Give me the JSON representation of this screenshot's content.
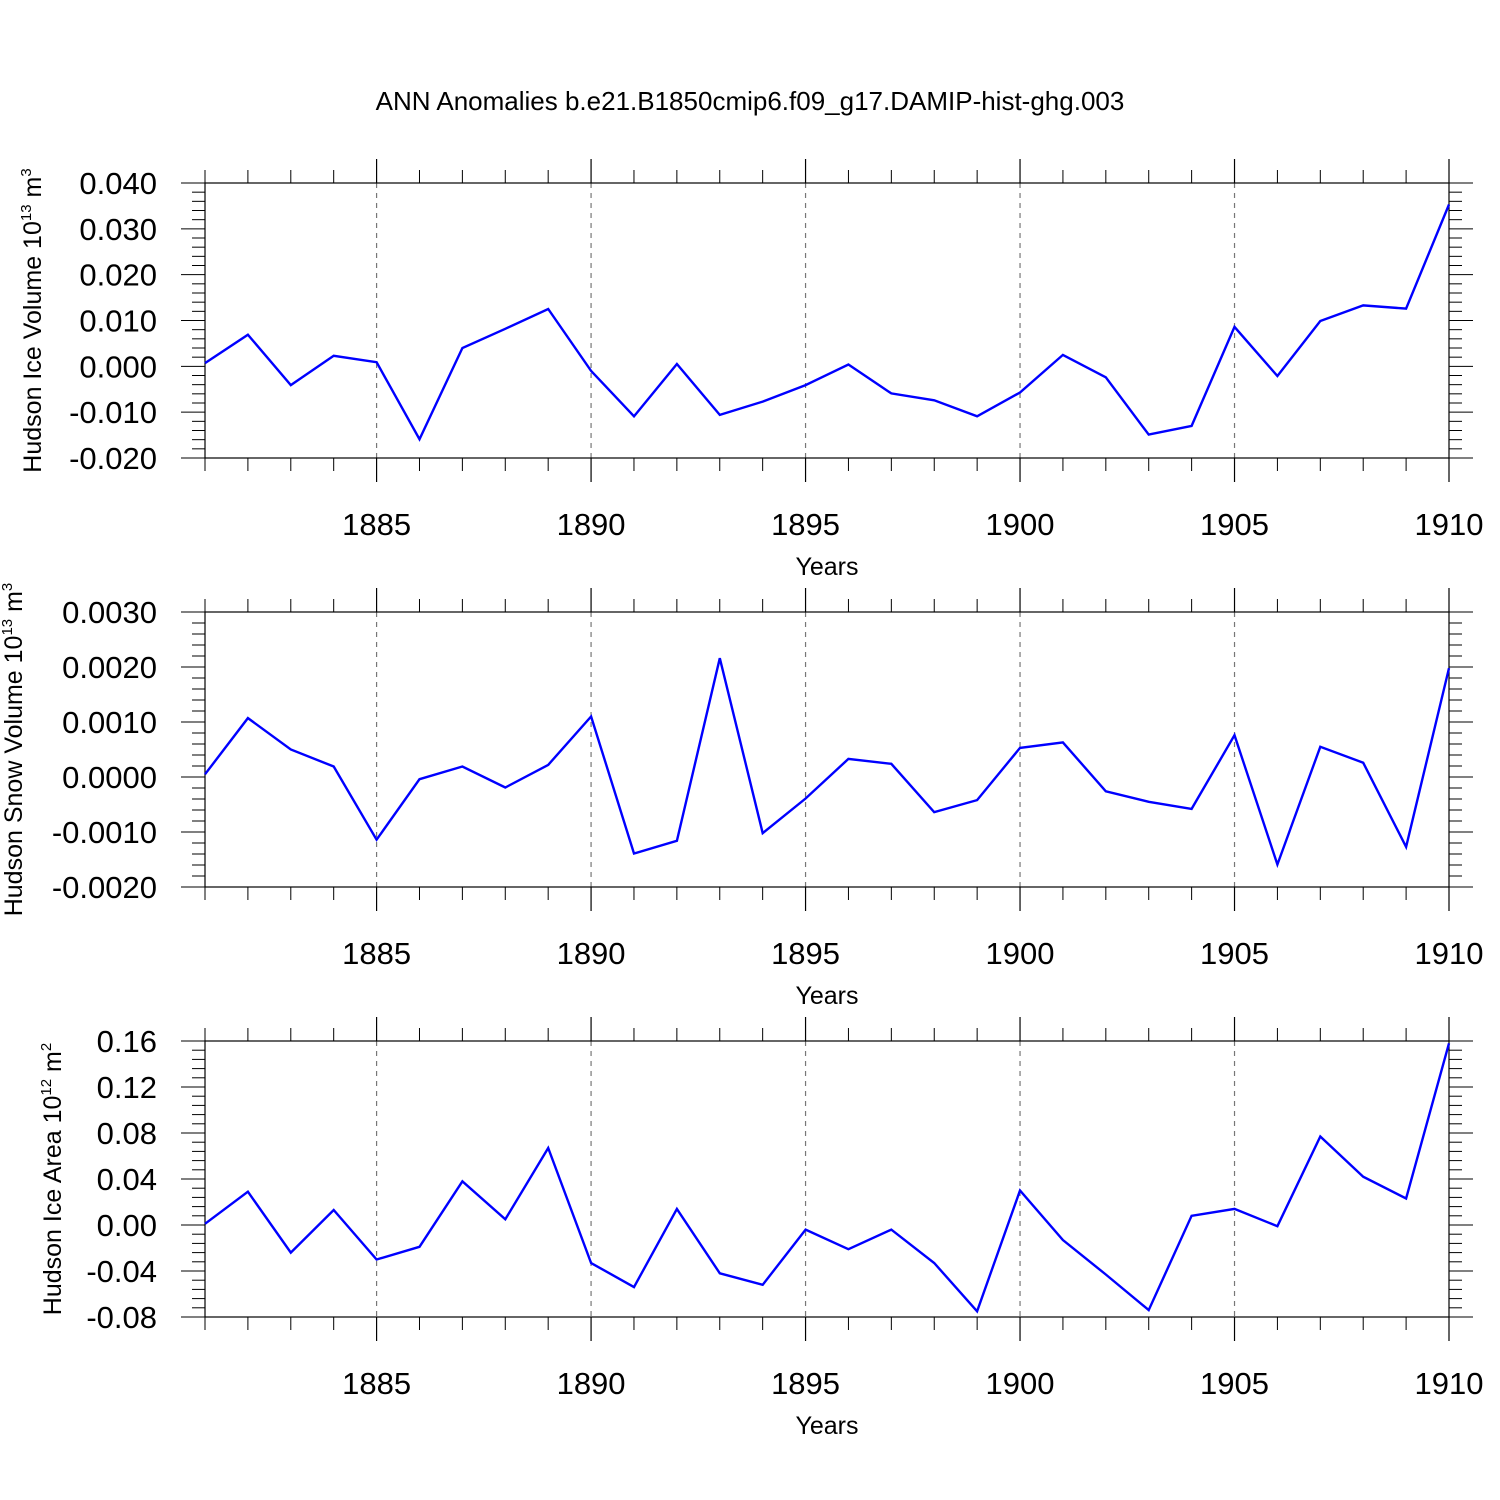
{
  "title": "ANN Anomalies b.e21.B1850cmip6.f09_g17.DAMIP-hist-ghg.003",
  "colors": {
    "line": "#0000ff",
    "axis": "#000000",
    "grid": "#777777"
  },
  "chart_data": [
    {
      "type": "line",
      "ylabel": {
        "text": "Hudson Ice Volume 10",
        "exp": "13",
        "unit": "m",
        "unit_exp": "3"
      },
      "xlabel": "Years",
      "xlim": [
        1881,
        1910
      ],
      "ylim": [
        -0.02,
        0.04
      ],
      "yticks": [
        -0.02,
        -0.01,
        0.0,
        0.01,
        0.02,
        0.03,
        0.04
      ],
      "ytick_labels": [
        "-0.020",
        "-0.010",
        "0.000",
        "0.010",
        "0.020",
        "0.030",
        "0.040"
      ],
      "xticks": [
        1885,
        1890,
        1895,
        1900,
        1905,
        1910
      ],
      "xtick_labels": [
        "1885",
        "1890",
        "1895",
        "1900",
        "1905",
        "1910"
      ],
      "grid": "vertical dashed at major x ticks",
      "series": [
        {
          "x": [
            1881,
            1882,
            1883,
            1884,
            1885,
            1886,
            1887,
            1888,
            1889,
            1890,
            1891,
            1892,
            1893,
            1894,
            1895,
            1896,
            1897,
            1898,
            1899,
            1900,
            1901,
            1902,
            1903,
            1904,
            1905,
            1906,
            1907,
            1908,
            1909,
            1910
          ],
          "values": [
            0.0007,
            0.0069,
            -0.0041,
            0.0023,
            0.0009,
            -0.0159,
            0.004,
            0.0082,
            0.0125,
            -0.001,
            -0.0109,
            0.0005,
            -0.0106,
            -0.0077,
            -0.0041,
            0.0004,
            -0.0059,
            -0.0074,
            -0.0109,
            -0.0057,
            0.0025,
            -0.0024,
            -0.0149,
            -0.013,
            0.0086,
            -0.0021,
            0.0099,
            0.0133,
            0.0126,
            0.0353
          ]
        }
      ]
    },
    {
      "type": "line",
      "ylabel": {
        "text": "Hudson Snow Volume 10",
        "exp": "13",
        "unit": "m",
        "unit_exp": "3"
      },
      "xlabel": "Years",
      "xlim": [
        1881,
        1910
      ],
      "ylim": [
        -0.002,
        0.003
      ],
      "yticks": [
        -0.002,
        -0.001,
        0.0,
        0.001,
        0.002,
        0.003
      ],
      "ytick_labels": [
        "-0.0020",
        "-0.0010",
        "0.0000",
        "0.0010",
        "0.0020",
        "0.0030"
      ],
      "xticks": [
        1885,
        1890,
        1895,
        1900,
        1905,
        1910
      ],
      "xtick_labels": [
        "1885",
        "1890",
        "1895",
        "1900",
        "1905",
        "1910"
      ],
      "grid": "vertical dashed at major x ticks",
      "series": [
        {
          "x": [
            1881,
            1882,
            1883,
            1884,
            1885,
            1886,
            1887,
            1888,
            1889,
            1890,
            1891,
            1892,
            1893,
            1894,
            1895,
            1896,
            1897,
            1898,
            1899,
            1900,
            1901,
            1902,
            1903,
            1904,
            1905,
            1906,
            1907,
            1908,
            1909,
            1910
          ],
          "values": [
            5e-05,
            0.00107,
            0.0005,
            0.00019,
            -0.00114,
            -4e-05,
            0.00019,
            -0.00019,
            0.00022,
            0.0011,
            -0.00139,
            -0.00116,
            0.00216,
            -0.00102,
            -0.00039,
            0.00033,
            0.00024,
            -0.00064,
            -0.00042,
            0.00053,
            0.00063,
            -0.00026,
            -0.00045,
            -0.00058,
            0.00076,
            -0.00159,
            0.00055,
            0.00026,
            -0.00127,
            0.00198
          ]
        }
      ]
    },
    {
      "type": "line",
      "ylabel": {
        "text": "Hudson Ice Area 10",
        "exp": "12",
        "unit": "m",
        "unit_exp": "2"
      },
      "xlabel": "Years",
      "xlim": [
        1881,
        1910
      ],
      "ylim": [
        -0.08,
        0.16
      ],
      "yticks": [
        -0.08,
        -0.04,
        0.0,
        0.04,
        0.08,
        0.12,
        0.16
      ],
      "ytick_labels": [
        "-0.08",
        "-0.04",
        "0.00",
        "0.04",
        "0.08",
        "0.12",
        "0.16"
      ],
      "xticks": [
        1885,
        1890,
        1895,
        1900,
        1905,
        1910
      ],
      "xtick_labels": [
        "1885",
        "1890",
        "1895",
        "1900",
        "1905",
        "1910"
      ],
      "grid": "vertical dashed at major x ticks",
      "series": [
        {
          "x": [
            1881,
            1882,
            1883,
            1884,
            1885,
            1886,
            1887,
            1888,
            1889,
            1890,
            1891,
            1892,
            1893,
            1894,
            1895,
            1896,
            1897,
            1898,
            1899,
            1900,
            1901,
            1902,
            1903,
            1904,
            1905,
            1906,
            1907,
            1908,
            1909,
            1910
          ],
          "values": [
            0.001,
            0.029,
            -0.024,
            0.013,
            -0.03,
            -0.019,
            0.038,
            0.005,
            0.067,
            -0.033,
            -0.054,
            0.014,
            -0.042,
            -0.052,
            -0.004,
            -0.021,
            -0.004,
            -0.033,
            -0.075,
            0.03,
            -0.013,
            -0.043,
            -0.074,
            0.008,
            0.014,
            -0.001,
            0.077,
            0.042,
            0.023,
            0.158
          ]
        }
      ]
    }
  ]
}
